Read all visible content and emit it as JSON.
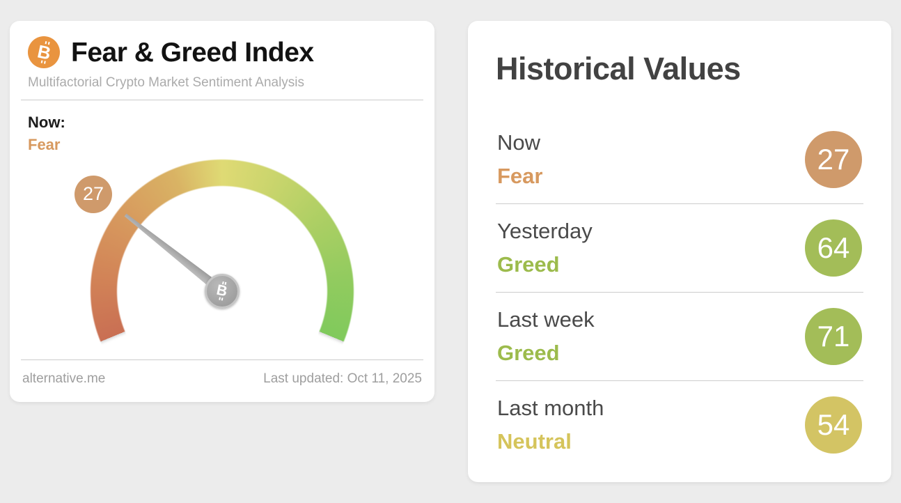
{
  "chart_data": {
    "type": "gauge",
    "title": "Fear & Greed Index",
    "subtitle": "Multifactorial Crypto Market Sentiment Analysis",
    "value": 27,
    "min": 0,
    "max": 100,
    "classification": "Fear",
    "arc_sweep_deg": 225,
    "arc_start_css_deg": 247.5,
    "color_scale": [
      "#c96f53",
      "#d79a5e",
      "#dfda74",
      "#aecf64",
      "#80ca5c"
    ],
    "needle_color": "#aaaaaa",
    "historical": [
      {
        "label": "Now",
        "classification": "Fear",
        "value": 27
      },
      {
        "label": "Yesterday",
        "classification": "Greed",
        "value": 64
      },
      {
        "label": "Last week",
        "classification": "Greed",
        "value": 71
      },
      {
        "label": "Last month",
        "classification": "Neutral",
        "value": 54
      }
    ]
  },
  "gauge_card": {
    "logo_icon": "bitcoin-icon",
    "logo_letter": "B",
    "logo_color": "#e9943f",
    "title": "Fear & Greed Index",
    "subtitle": "Multifactorial Crypto Market Sentiment Analysis",
    "now_label": "Now:",
    "now_classification": "Fear",
    "now_value": "27",
    "now_text_color": "#d7995f",
    "now_badge_color": "#cf9a6b",
    "footer_source": "alternative.me",
    "footer_updated": "Last updated: Oct 11, 2025"
  },
  "historical_card": {
    "title": "Historical Values",
    "rows": [
      {
        "label": "Now",
        "classification": "Fear",
        "value": "27",
        "text_color": "#d7995f",
        "badge_color": "#cf9a6b"
      },
      {
        "label": "Yesterday",
        "classification": "Greed",
        "value": "64",
        "text_color": "#9cbb4c",
        "badge_color": "#a3bd58"
      },
      {
        "label": "Last week",
        "classification": "Greed",
        "value": "71",
        "text_color": "#9cbb4c",
        "badge_color": "#a3bd58"
      },
      {
        "label": "Last month",
        "classification": "Neutral",
        "value": "54",
        "text_color": "#d5c45b",
        "badge_color": "#d3c464"
      }
    ]
  }
}
